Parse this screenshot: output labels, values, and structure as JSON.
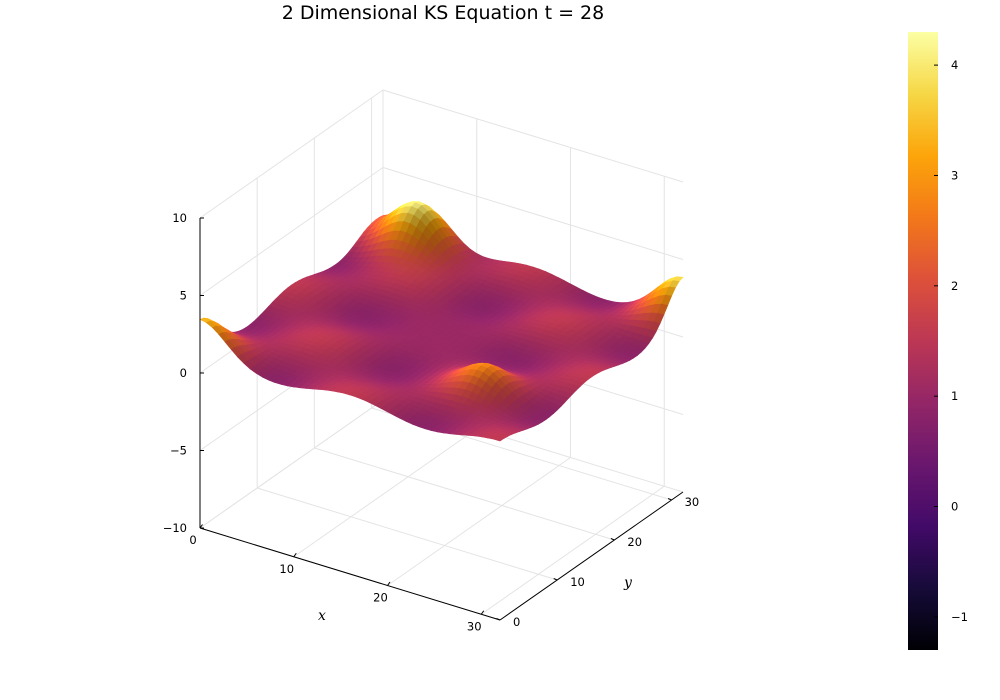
{
  "chart_data": {
    "type": "surface",
    "title": "2 Dimensional KS Equation t = 28",
    "xlabel": "x",
    "ylabel": "y",
    "zlabel": "",
    "x_ticks": [
      "0",
      "10",
      "20",
      "30"
    ],
    "y_ticks": [
      "0",
      "10",
      "20",
      "30"
    ],
    "z_ticks": [
      "−10",
      "−5",
      "0",
      "5",
      "10"
    ],
    "xlim": [
      0,
      32
    ],
    "ylim": [
      0,
      32
    ],
    "zlim": [
      -10,
      10
    ],
    "colorbar": {
      "colormap": "inferno",
      "range": [
        -1.3,
        4.3
      ],
      "ticks": [
        "−1",
        "0",
        "1",
        "2",
        "3",
        "4"
      ]
    },
    "surface_features": {
      "base_level": 1.2,
      "peak_max": 4.3,
      "description_values": [
        {
          "x": 5,
          "y": 30,
          "z": 4.2
        },
        {
          "x": 32,
          "y": 32,
          "z": 3.5
        },
        {
          "x": 0,
          "y": 0,
          "z": 3.1
        },
        {
          "x": 25,
          "y": 9,
          "z": 2.5
        }
      ]
    }
  }
}
